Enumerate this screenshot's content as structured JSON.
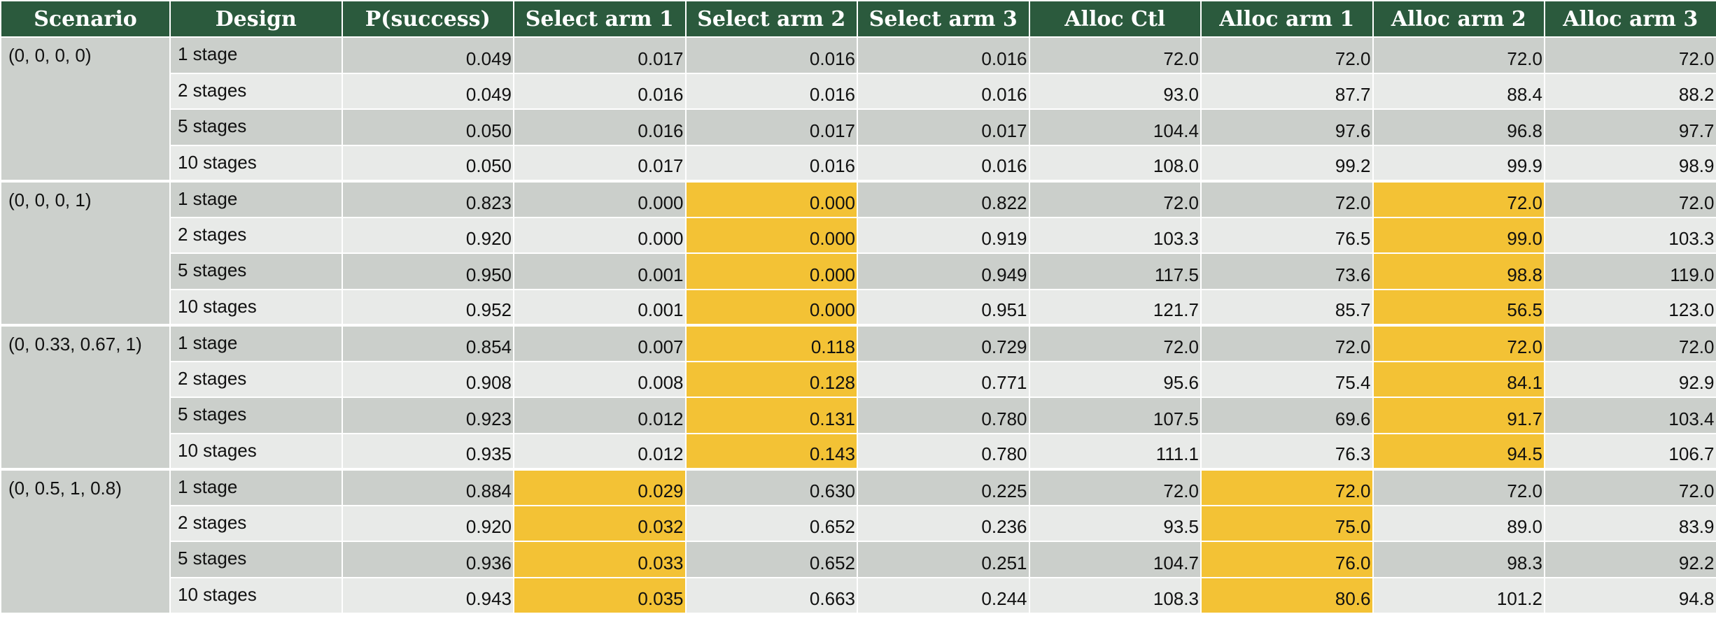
{
  "headers": [
    "Scenario",
    "Design",
    "P(success)",
    "Select arm 1",
    "Select arm 2",
    "Select arm 3",
    "Alloc Ctl",
    "Alloc arm 1",
    "Alloc arm 2",
    "Alloc arm 3"
  ],
  "colors": {
    "header_bg": "#2b5a3d",
    "row_dark": "#cbcfcb",
    "row_light": "#e8eae8",
    "highlight": "#f3c235"
  },
  "groups": [
    {
      "scenario": "(0, 0, 0, 0)",
      "highlight_cols": [],
      "rows": [
        {
          "design": "1 stage",
          "values": [
            "0.049",
            "0.017",
            "0.016",
            "0.016",
            "72.0",
            "72.0",
            "72.0",
            "72.0"
          ]
        },
        {
          "design": "2 stages",
          "values": [
            "0.049",
            "0.016",
            "0.016",
            "0.016",
            "93.0",
            "87.7",
            "88.4",
            "88.2"
          ]
        },
        {
          "design": "5 stages",
          "values": [
            "0.050",
            "0.016",
            "0.017",
            "0.017",
            "104.4",
            "97.6",
            "96.8",
            "97.7"
          ]
        },
        {
          "design": "10 stages",
          "values": [
            "0.050",
            "0.017",
            "0.016",
            "0.016",
            "108.0",
            "99.2",
            "99.9",
            "98.9"
          ]
        }
      ]
    },
    {
      "scenario": "(0, 0, 0, 1)",
      "highlight_cols": [
        3,
        7
      ],
      "rows": [
        {
          "design": "1 stage",
          "values": [
            "0.823",
            "0.000",
            "0.000",
            "0.822",
            "72.0",
            "72.0",
            "72.0",
            "72.0"
          ]
        },
        {
          "design": "2 stages",
          "values": [
            "0.920",
            "0.000",
            "0.000",
            "0.919",
            "103.3",
            "76.5",
            "99.0",
            "103.3"
          ]
        },
        {
          "design": "5 stages",
          "values": [
            "0.950",
            "0.001",
            "0.000",
            "0.949",
            "117.5",
            "73.6",
            "98.8",
            "119.0"
          ]
        },
        {
          "design": "10 stages",
          "values": [
            "0.952",
            "0.001",
            "0.000",
            "0.951",
            "121.7",
            "85.7",
            "56.5",
            "123.0"
          ]
        }
      ]
    },
    {
      "scenario": "(0, 0.33, 0.67, 1)",
      "highlight_cols": [
        3,
        7
      ],
      "rows": [
        {
          "design": "1 stage",
          "values": [
            "0.854",
            "0.007",
            "0.118",
            "0.729",
            "72.0",
            "72.0",
            "72.0",
            "72.0"
          ]
        },
        {
          "design": "2 stages",
          "values": [
            "0.908",
            "0.008",
            "0.128",
            "0.771",
            "95.6",
            "75.4",
            "84.1",
            "92.9"
          ]
        },
        {
          "design": "5 stages",
          "values": [
            "0.923",
            "0.012",
            "0.131",
            "0.780",
            "107.5",
            "69.6",
            "91.7",
            "103.4"
          ]
        },
        {
          "design": "10 stages",
          "values": [
            "0.935",
            "0.012",
            "0.143",
            "0.780",
            "111.1",
            "76.3",
            "94.5",
            "106.7"
          ]
        }
      ]
    },
    {
      "scenario": "(0, 0.5, 1, 0.8)",
      "highlight_cols": [
        2,
        6
      ],
      "rows": [
        {
          "design": "1 stage",
          "values": [
            "0.884",
            "0.029",
            "0.630",
            "0.225",
            "72.0",
            "72.0",
            "72.0",
            "72.0"
          ]
        },
        {
          "design": "2 stages",
          "values": [
            "0.920",
            "0.032",
            "0.652",
            "0.236",
            "93.5",
            "75.0",
            "89.0",
            "83.9"
          ]
        },
        {
          "design": "5 stages",
          "values": [
            "0.936",
            "0.033",
            "0.652",
            "0.251",
            "104.7",
            "76.0",
            "98.3",
            "92.2"
          ]
        },
        {
          "design": "10 stages",
          "values": [
            "0.943",
            "0.035",
            "0.663",
            "0.244",
            "108.3",
            "80.6",
            "101.2",
            "94.8"
          ]
        }
      ]
    }
  ]
}
